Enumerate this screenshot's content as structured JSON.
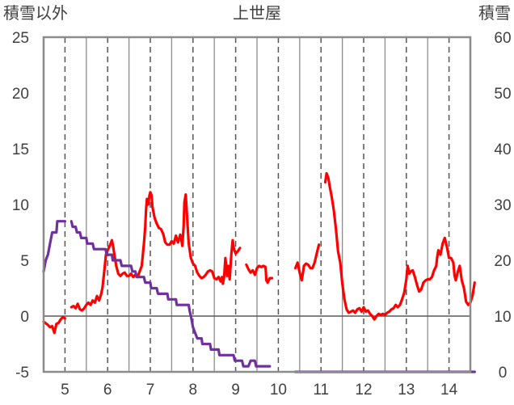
{
  "chart_data": {
    "type": "line",
    "title": "上世屋",
    "y_left_label": "積雪以外",
    "y_right_label": "積雪",
    "x_range": [
      4.5,
      14.5
    ],
    "x_ticks": [
      "5",
      "6",
      "7",
      "8",
      "9",
      "10",
      "11",
      "12",
      "13",
      "14"
    ],
    "y_left": {
      "range": [
        -5,
        25
      ],
      "ticks": [
        "-5",
        "0",
        "5",
        "10",
        "15",
        "20",
        "25"
      ]
    },
    "y_right": {
      "range": [
        0,
        60
      ],
      "ticks": [
        "0",
        "10",
        "20",
        "30",
        "40",
        "50",
        "60"
      ]
    },
    "grid": {
      "vertical_solid_at": [
        4.5,
        5.5,
        6.5,
        7.5,
        8.5,
        9.5,
        10.5,
        11.5,
        12.5,
        13.5,
        14.5
      ],
      "vertical_dashed_at": [
        5,
        6,
        7,
        8,
        9,
        10,
        11,
        12,
        13,
        14
      ],
      "zero_line": true
    },
    "colors": {
      "temperature": "#ff0000",
      "snow": "#7030a0"
    },
    "series": [
      {
        "key": "temperature",
        "axis": "left",
        "segments": [
          [
            [
              4.5,
              -0.5
            ],
            [
              4.6,
              -0.8
            ],
            [
              4.65,
              -1.0
            ],
            [
              4.7,
              -0.9
            ],
            [
              4.75,
              -1.5
            ],
            [
              4.8,
              -0.7
            ],
            [
              4.85,
              -0.6
            ],
            [
              4.9,
              -0.3
            ],
            [
              4.95,
              -0.1
            ],
            [
              5.0,
              -0.2
            ]
          ],
          [
            [
              5.15,
              0.8
            ],
            [
              5.2,
              0.9
            ],
            [
              5.25,
              0.7
            ],
            [
              5.3,
              1.1
            ],
            [
              5.35,
              0.6
            ],
            [
              5.4,
              0.5
            ],
            [
              5.45,
              0.7
            ],
            [
              5.5,
              1.0
            ],
            [
              5.55,
              1.2
            ],
            [
              5.6,
              1.0
            ],
            [
              5.65,
              1.4
            ],
            [
              5.7,
              1.2
            ],
            [
              5.75,
              1.8
            ],
            [
              5.8,
              1.4
            ],
            [
              5.85,
              2.0
            ],
            [
              5.88,
              2.6
            ],
            [
              5.92,
              4.0
            ],
            [
              5.96,
              5.5
            ],
            [
              6.0,
              5.9
            ],
            [
              6.05,
              6.3
            ],
            [
              6.1,
              6.8
            ],
            [
              6.13,
              6.2
            ],
            [
              6.17,
              5.2
            ],
            [
              6.2,
              4.5
            ],
            [
              6.25,
              3.8
            ],
            [
              6.3,
              3.6
            ],
            [
              6.35,
              3.8
            ],
            [
              6.4,
              3.9
            ],
            [
              6.45,
              3.6
            ],
            [
              6.5,
              3.6
            ],
            [
              6.55,
              3.8
            ],
            [
              6.6,
              3.5
            ],
            [
              6.65,
              3.7
            ],
            [
              6.7,
              3.5
            ],
            [
              6.75,
              4.0
            ],
            [
              6.8,
              4.5
            ],
            [
              6.85,
              6.5
            ],
            [
              6.88,
              8.0
            ],
            [
              6.9,
              9.5
            ],
            [
              6.92,
              10.5
            ],
            [
              6.95,
              10.0
            ],
            [
              6.98,
              10.8
            ],
            [
              7.0,
              11.1
            ],
            [
              7.03,
              10.8
            ],
            [
              7.05,
              9.8
            ],
            [
              7.1,
              8.8
            ],
            [
              7.15,
              8.3
            ],
            [
              7.2,
              7.9
            ],
            [
              7.25,
              7.8
            ],
            [
              7.3,
              7.4
            ],
            [
              7.35,
              6.6
            ],
            [
              7.4,
              6.4
            ],
            [
              7.45,
              6.4
            ],
            [
              7.5,
              6.7
            ],
            [
              7.55,
              6.5
            ],
            [
              7.6,
              7.2
            ],
            [
              7.65,
              6.6
            ],
            [
              7.7,
              7.3
            ],
            [
              7.72,
              7.0
            ],
            [
              7.75,
              6.3
            ],
            [
              7.78,
              8.0
            ],
            [
              7.8,
              10.2
            ],
            [
              7.83,
              10.9
            ],
            [
              7.86,
              9.0
            ],
            [
              7.9,
              6.5
            ],
            [
              7.95,
              5.2
            ],
            [
              8.0,
              4.7
            ],
            [
              8.05,
              4.5
            ],
            [
              8.1,
              3.9
            ],
            [
              8.15,
              3.6
            ],
            [
              8.2,
              3.4
            ],
            [
              8.25,
              3.5
            ],
            [
              8.3,
              3.7
            ],
            [
              8.35,
              4.0
            ],
            [
              8.4,
              4.1
            ],
            [
              8.45,
              4.0
            ],
            [
              8.5,
              3.4
            ],
            [
              8.55,
              3.3
            ],
            [
              8.6,
              3.5
            ],
            [
              8.65,
              3.1
            ],
            [
              8.68,
              3.5
            ],
            [
              8.7,
              2.9
            ],
            [
              8.73,
              3.5
            ],
            [
              8.76,
              5.2
            ],
            [
              8.8,
              3.6
            ],
            [
              8.83,
              4.5
            ],
            [
              8.86,
              3.3
            ],
            [
              8.9,
              5.6
            ],
            [
              8.93,
              6.8
            ],
            [
              8.96,
              6.0
            ],
            [
              9.0,
              5.6
            ],
            [
              9.05,
              5.8
            ],
            [
              9.1,
              6.1
            ]
          ],
          [
            [
              9.25,
              4.6
            ],
            [
              9.3,
              4.2
            ],
            [
              9.35,
              3.9
            ],
            [
              9.4,
              4.1
            ],
            [
              9.45,
              3.7
            ],
            [
              9.5,
              4.3
            ],
            [
              9.55,
              4.5
            ],
            [
              9.6,
              4.4
            ],
            [
              9.65,
              4.5
            ],
            [
              9.7,
              4.4
            ],
            [
              9.72,
              3.2
            ],
            [
              9.75,
              3.0
            ],
            [
              9.8,
              3.4
            ],
            [
              9.85,
              3.4
            ]
          ],
          [
            [
              10.4,
              4.3
            ],
            [
              10.45,
              4.8
            ],
            [
              10.5,
              3.9
            ],
            [
              10.55,
              3.2
            ],
            [
              10.6,
              4.5
            ],
            [
              10.65,
              4.7
            ],
            [
              10.7,
              4.6
            ],
            [
              10.75,
              4.3
            ],
            [
              10.8,
              4.3
            ],
            [
              10.85,
              4.8
            ],
            [
              10.9,
              5.6
            ],
            [
              10.95,
              6.4
            ]
          ],
          [
            [
              11.1,
              12.0
            ],
            [
              11.13,
              12.8
            ],
            [
              11.17,
              12.4
            ],
            [
              11.2,
              11.7
            ],
            [
              11.25,
              10.7
            ],
            [
              11.3,
              9.5
            ],
            [
              11.35,
              7.8
            ],
            [
              11.4,
              5.8
            ],
            [
              11.45,
              4.8
            ],
            [
              11.5,
              2.9
            ],
            [
              11.55,
              1.5
            ],
            [
              11.6,
              0.6
            ],
            [
              11.65,
              0.3
            ],
            [
              11.7,
              0.4
            ],
            [
              11.75,
              0.5
            ],
            [
              11.8,
              0.3
            ],
            [
              11.85,
              0.6
            ],
            [
              11.9,
              0.7
            ],
            [
              11.95,
              0.4
            ],
            [
              12.0,
              0.8
            ],
            [
              12.05,
              0.4
            ],
            [
              12.1,
              0.5
            ],
            [
              12.15,
              0.2
            ],
            [
              12.2,
              0.0
            ],
            [
              12.25,
              -0.3
            ],
            [
              12.3,
              0.0
            ],
            [
              12.35,
              0.2
            ],
            [
              12.4,
              0.1
            ],
            [
              12.45,
              0.2
            ],
            [
              12.5,
              0.1
            ],
            [
              12.55,
              0.3
            ],
            [
              12.6,
              0.4
            ],
            [
              12.65,
              0.6
            ],
            [
              12.7,
              0.7
            ],
            [
              12.75,
              1.0
            ],
            [
              12.8,
              0.8
            ],
            [
              12.85,
              1.0
            ],
            [
              12.9,
              1.5
            ],
            [
              12.95,
              2.1
            ],
            [
              13.0,
              3.3
            ],
            [
              13.03,
              4.5
            ],
            [
              13.07,
              3.8
            ],
            [
              13.1,
              4.0
            ],
            [
              13.15,
              4.1
            ],
            [
              13.2,
              3.5
            ],
            [
              13.25,
              2.8
            ],
            [
              13.3,
              2.2
            ],
            [
              13.35,
              2.4
            ],
            [
              13.4,
              3.0
            ],
            [
              13.45,
              3.2
            ],
            [
              13.5,
              3.3
            ],
            [
              13.55,
              3.3
            ],
            [
              13.6,
              3.5
            ],
            [
              13.65,
              4.1
            ],
            [
              13.7,
              4.5
            ],
            [
              13.72,
              5.2
            ],
            [
              13.75,
              5.9
            ],
            [
              13.8,
              5.5
            ],
            [
              13.85,
              6.5
            ],
            [
              13.9,
              7.0
            ],
            [
              13.95,
              6.2
            ],
            [
              14.0,
              5.2
            ],
            [
              14.05,
              5.2
            ],
            [
              14.1,
              4.8
            ],
            [
              14.13,
              3.6
            ],
            [
              14.16,
              3.2
            ],
            [
              14.2,
              3.9
            ],
            [
              14.25,
              4.5
            ],
            [
              14.3,
              3.2
            ],
            [
              14.35,
              2.5
            ],
            [
              14.4,
              1.3
            ],
            [
              14.45,
              1.0
            ],
            [
              14.5,
              1.2
            ],
            [
              14.55,
              1.8
            ],
            [
              14.6,
              3.0
            ]
          ]
        ]
      },
      {
        "key": "snow",
        "axis": "right",
        "segments": [
          [
            [
              4.5,
              18.0
            ],
            [
              4.55,
              20.0
            ],
            [
              4.6,
              21.0
            ],
            [
              4.65,
              23.0
            ],
            [
              4.7,
              25.0
            ],
            [
              4.8,
              25.0
            ],
            [
              4.82,
              27.0
            ],
            [
              4.95,
              27.0
            ],
            [
              5.0,
              27.0
            ]
          ],
          [
            [
              5.15,
              27.0
            ],
            [
              5.18,
              26.0
            ],
            [
              5.25,
              26.0
            ],
            [
              5.28,
              25.0
            ],
            [
              5.35,
              25.0
            ],
            [
              5.38,
              24.0
            ],
            [
              5.5,
              24.0
            ],
            [
              5.52,
              23.0
            ],
            [
              5.65,
              23.0
            ],
            [
              5.68,
              22.0
            ],
            [
              5.95,
              22.0
            ],
            [
              5.98,
              21.0
            ],
            [
              6.1,
              21.0
            ],
            [
              6.12,
              20.0
            ],
            [
              6.3,
              20.0
            ],
            [
              6.33,
              19.0
            ],
            [
              6.55,
              19.0
            ],
            [
              6.58,
              18.0
            ],
            [
              6.65,
              18.0
            ],
            [
              6.68,
              17.0
            ],
            [
              6.85,
              17.0
            ],
            [
              6.88,
              16.0
            ],
            [
              7.0,
              16.0
            ],
            [
              7.02,
              15.0
            ],
            [
              7.15,
              15.0
            ],
            [
              7.18,
              14.0
            ],
            [
              7.4,
              14.0
            ],
            [
              7.42,
              13.0
            ],
            [
              7.6,
              13.0
            ],
            [
              7.62,
              12.0
            ],
            [
              7.9,
              12.0
            ],
            [
              7.92,
              11.0
            ],
            [
              7.95,
              10.0
            ],
            [
              8.0,
              8.0
            ],
            [
              8.05,
              7.0
            ],
            [
              8.1,
              6.0
            ],
            [
              8.2,
              6.0
            ],
            [
              8.22,
              5.0
            ],
            [
              8.4,
              5.0
            ],
            [
              8.42,
              4.0
            ],
            [
              8.6,
              4.0
            ],
            [
              8.62,
              3.0
            ],
            [
              8.95,
              3.0
            ],
            [
              8.98,
              2.0
            ],
            [
              9.15,
              2.0
            ],
            [
              9.18,
              1.0
            ],
            [
              9.3,
              1.0
            ],
            [
              9.35,
              2.0
            ],
            [
              9.45,
              2.0
            ],
            [
              9.48,
              1.0
            ],
            [
              9.8,
              1.0
            ]
          ],
          [
            [
              10.4,
              0.0
            ],
            [
              14.6,
              0.0
            ]
          ]
        ]
      }
    ]
  }
}
